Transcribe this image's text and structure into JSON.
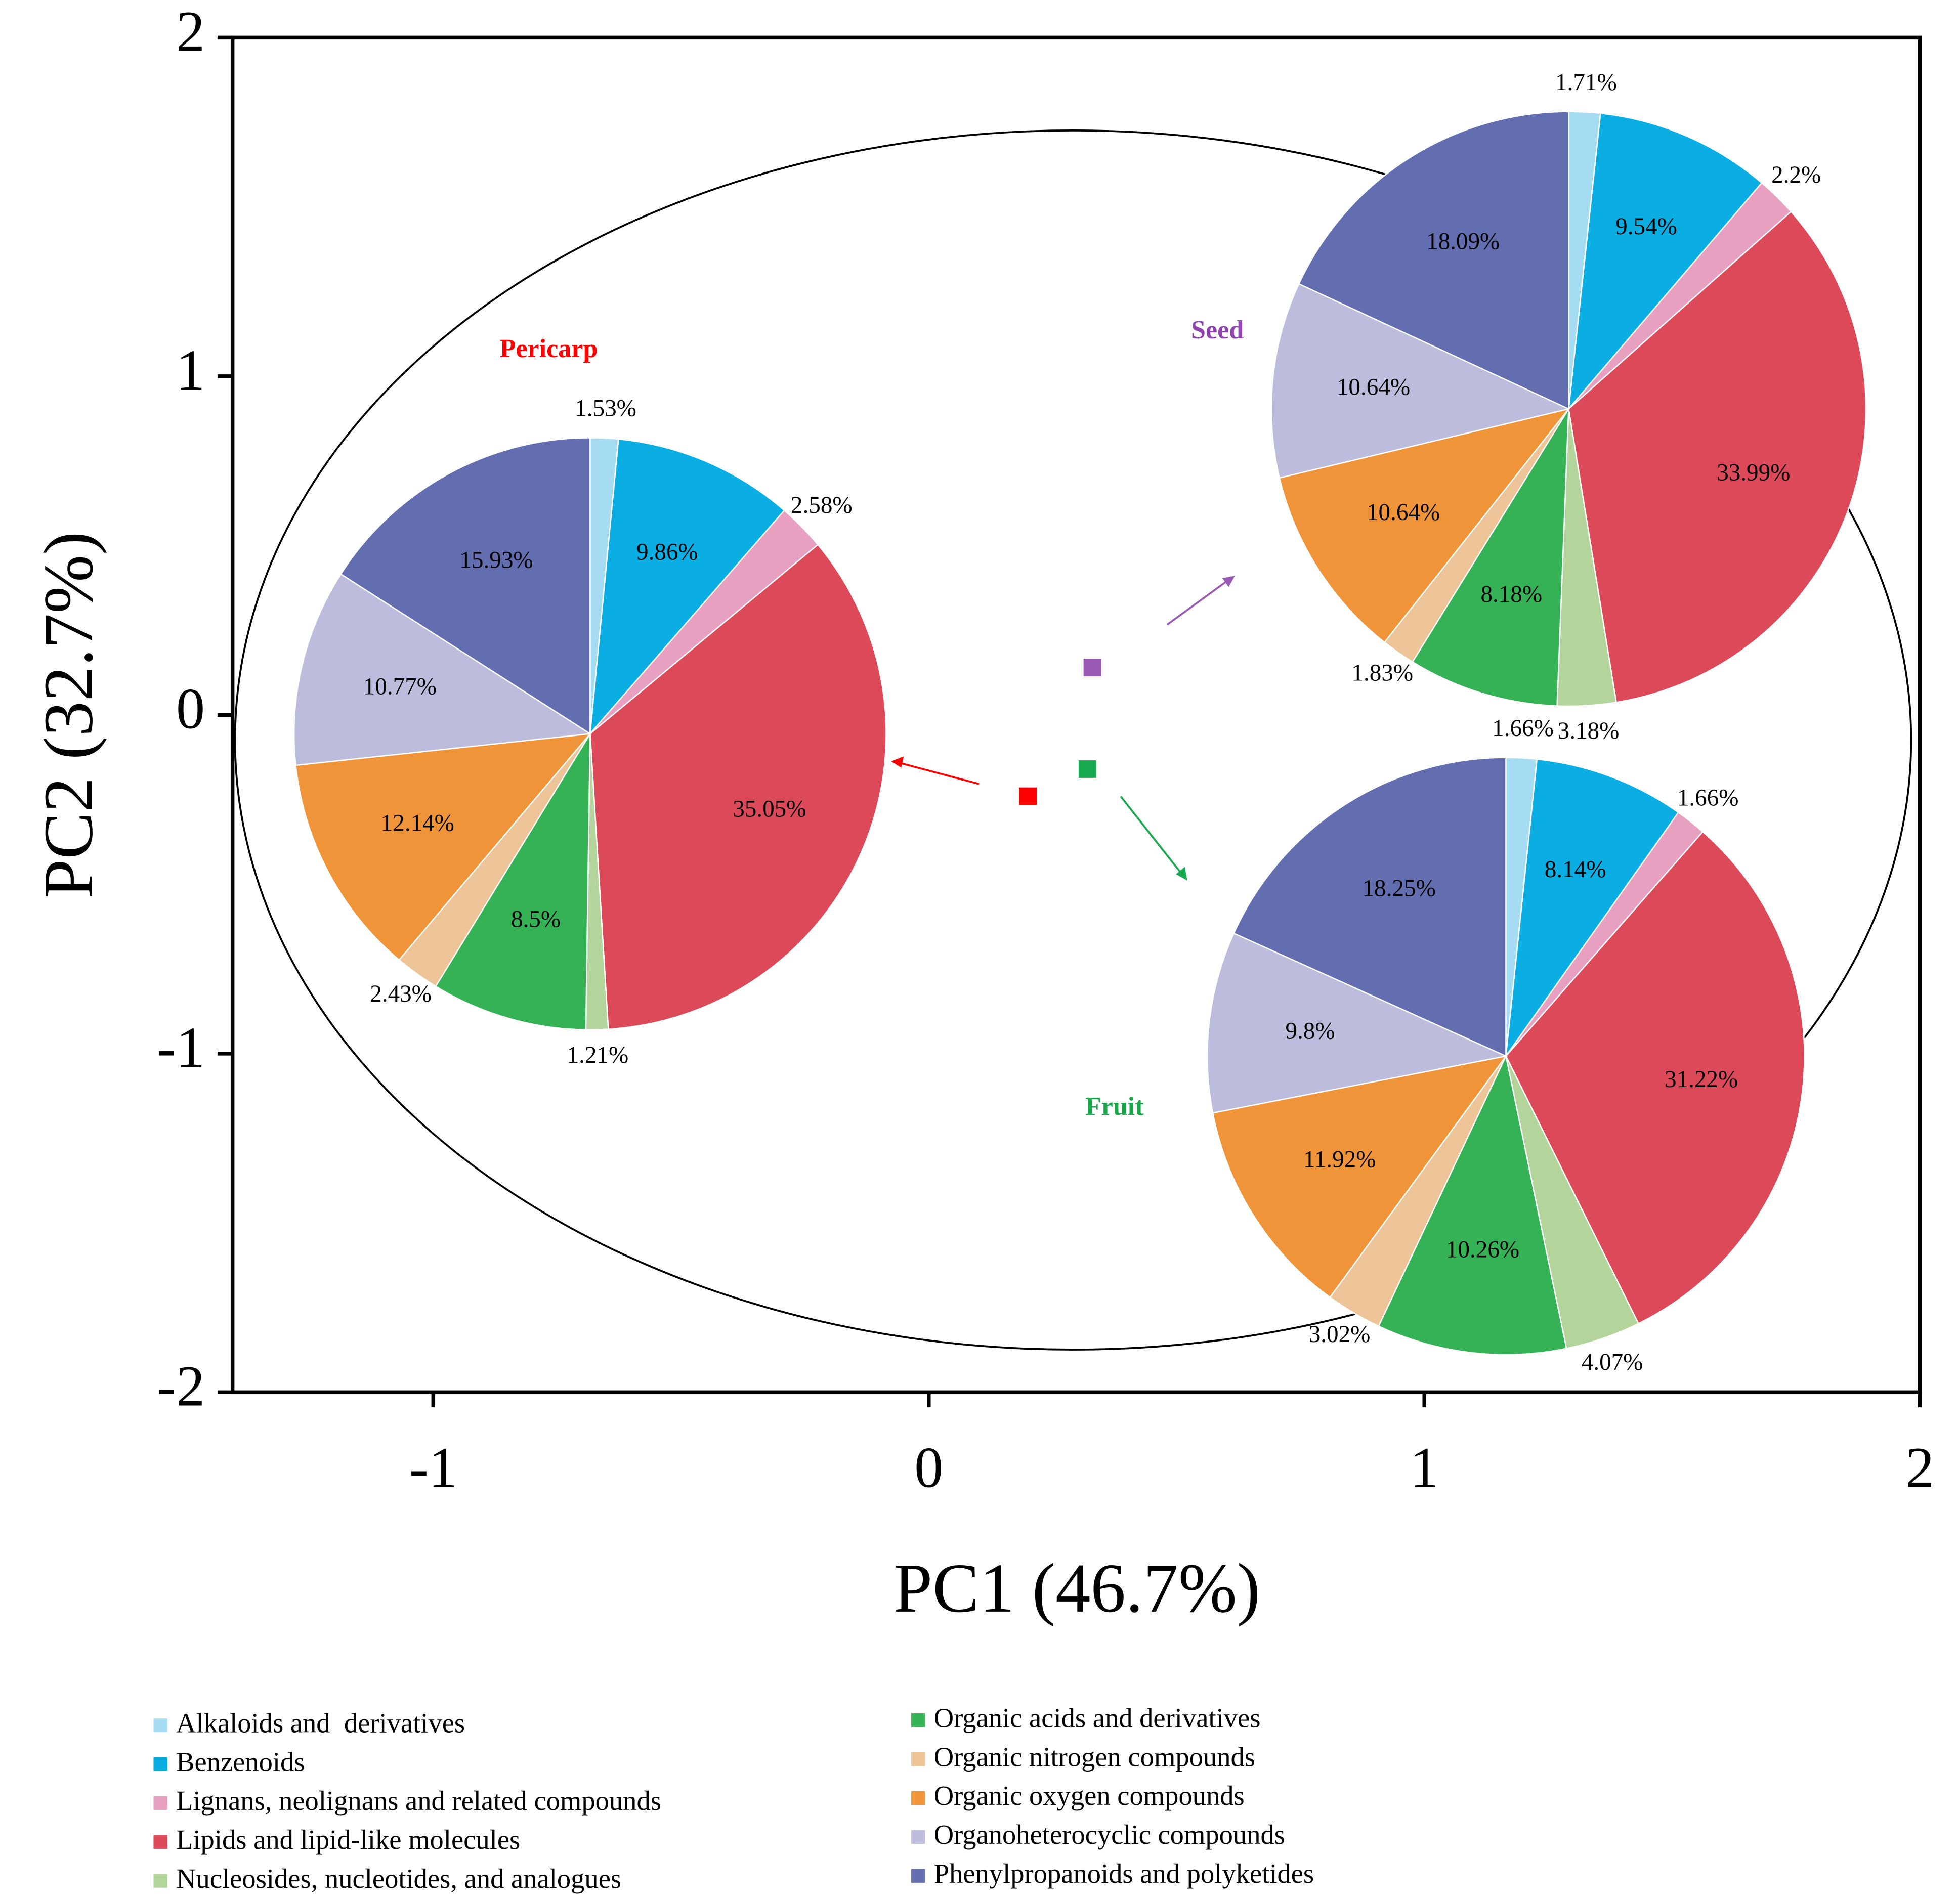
{
  "chart_data": [
    {
      "type": "scatter",
      "xlabel": "PC1 (46.7%)",
      "ylabel": "PC2 (32.7%)",
      "xlim": [
        -1.405,
        2
      ],
      "ylim": [
        -2,
        2
      ],
      "xticks": [
        -1,
        0,
        1,
        2
      ],
      "yticks": [
        -2,
        -1,
        0,
        1,
        2
      ],
      "series": [
        {
          "color": "#ff0000",
          "x": [
            0.2
          ],
          "values": [
            -0.24
          ]
        },
        {
          "color": "#9b59b6",
          "x": [
            0.33
          ],
          "values": [
            0.14
          ]
        },
        {
          "color": "#18a84e",
          "x": [
            0.32
          ],
          "values": [
            -0.16
          ]
        }
      ]
    },
    {
      "type": "pie",
      "title": "Pericarp",
      "title_color": "#ff0000",
      "values": [
        1.53,
        9.86,
        2.58,
        35.05,
        1.21,
        8.5,
        2.43,
        12.14,
        10.77,
        15.93
      ],
      "value_labels": [
        "1.53%",
        "9.86%",
        "2.58%",
        "35.05%",
        "1.21%",
        "8.5%",
        "2.43%",
        "12.14%",
        "10.77%",
        "15.93%"
      ]
    },
    {
      "type": "pie",
      "title": "Seed",
      "title_color": "#8e44ad",
      "values": [
        1.71,
        9.54,
        2.2,
        33.99,
        3.18,
        8.18,
        1.83,
        10.64,
        10.64,
        18.09
      ],
      "value_labels": [
        "1.71%",
        "9.54%",
        "2.2%",
        "33.99%",
        "3.18%",
        "8.18%",
        "1.83%",
        "10.64%",
        "10.64%",
        "18.09%"
      ]
    },
    {
      "type": "pie",
      "title": "Fruit",
      "title_color": "#1aa64a",
      "values": [
        1.66,
        8.14,
        1.66,
        31.22,
        4.07,
        10.26,
        3.02,
        11.92,
        9.8,
        18.25
      ],
      "value_labels": [
        "1.66%",
        "8.14%",
        "1.66%",
        "31.22%",
        "4.07%",
        "10.26%",
        "3.02%",
        "11.92%",
        "9.8%",
        "18.25%"
      ]
    }
  ],
  "legend": {
    "labels": [
      "Alkaloids and  derivatives",
      "Benzenoids",
      "Lignans, neolignans and related compounds",
      "Lipids and lipid-like molecules",
      "Nucleosides, nucleotides, and analogues",
      "Organic acids and derivatives",
      "Organic nitrogen compounds",
      "Organic oxygen compounds",
      "Organoheterocyclic compounds",
      "Phenylpropanoids and polyketides"
    ],
    "colors": [
      "#a6dcf2",
      "#0aaee2",
      "#e8a0c0",
      "#dc4a5a",
      "#b3d59c",
      "#35b156",
      "#ecc497",
      "#f0943a",
      "#bcbddc",
      "#636eb1"
    ]
  }
}
